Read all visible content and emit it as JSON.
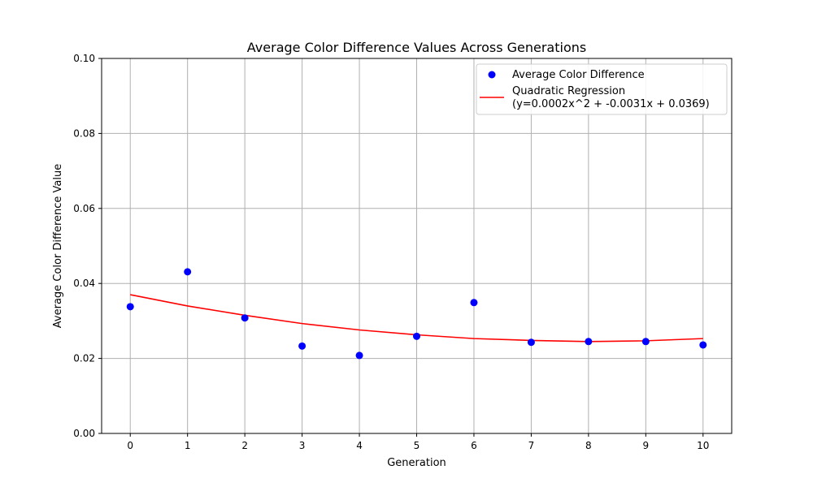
{
  "chart_data": {
    "type": "scatter",
    "title": "Average Color Difference Values Across Generations",
    "xlabel": "Generation",
    "ylabel": "Average Color Difference Value",
    "xlim": [
      -0.5,
      10.5
    ],
    "ylim": [
      0,
      0.1
    ],
    "xticks": [
      0,
      1,
      2,
      3,
      4,
      5,
      6,
      7,
      8,
      9,
      10
    ],
    "xtick_labels": [
      "0",
      "1",
      "2",
      "3",
      "4",
      "5",
      "6",
      "7",
      "8",
      "9",
      "10"
    ],
    "yticks": [
      0,
      0.02,
      0.04,
      0.06,
      0.08,
      0.1
    ],
    "ytick_labels": [
      "0.00",
      "0.02",
      "0.04",
      "0.06",
      "0.08",
      "0.10"
    ],
    "grid": true,
    "legend_position": "top-right",
    "series": [
      {
        "name": "Average Color Difference",
        "kind": "scatter",
        "color": "#0000ff",
        "x": [
          0,
          1,
          2,
          3,
          4,
          5,
          6,
          7,
          8,
          9,
          10
        ],
        "y": [
          0.0338,
          0.0431,
          0.0308,
          0.0233,
          0.0208,
          0.0259,
          0.0349,
          0.0243,
          0.0245,
          0.0245,
          0.0236
        ]
      },
      {
        "name": "Quadratic Regression\n(y=0.0002x^2 + -0.0031x + 0.0369)",
        "name_lines": [
          "Quadratic Regression",
          "(y=0.0002x^2 + -0.0031x + 0.0369)"
        ],
        "kind": "line",
        "color": "#ff0000",
        "x": [
          0,
          1,
          2,
          3,
          4,
          5,
          6,
          7,
          8,
          9,
          10
        ],
        "y": [
          0.037,
          0.034,
          0.0315,
          0.0293,
          0.0276,
          0.0263,
          0.0253,
          0.0248,
          0.0245,
          0.0247,
          0.0253
        ]
      }
    ]
  }
}
